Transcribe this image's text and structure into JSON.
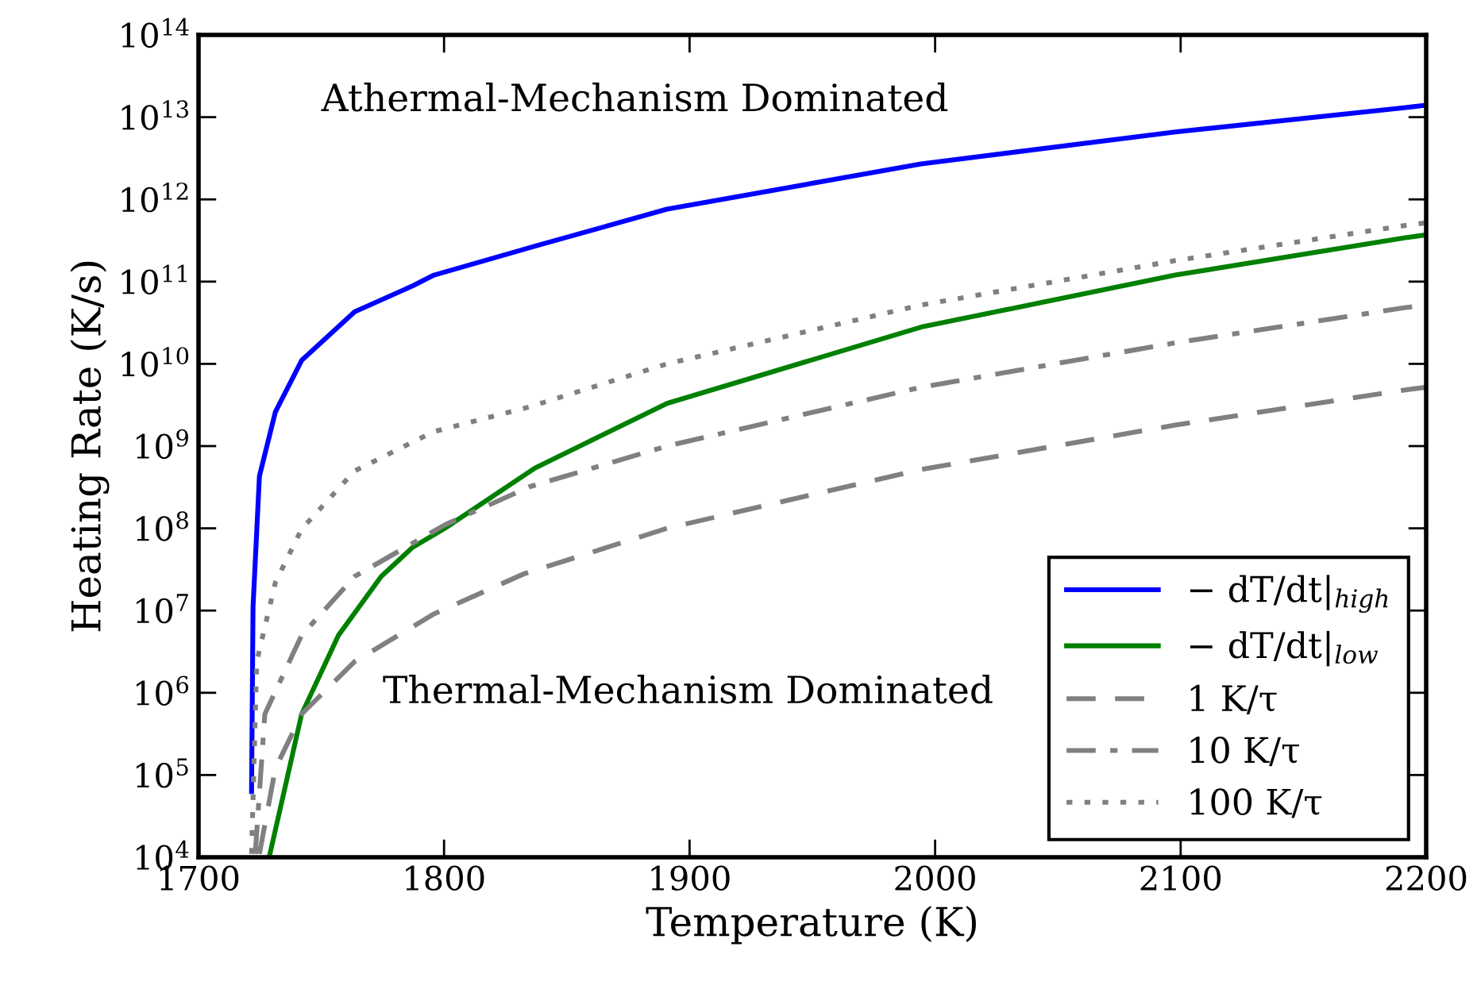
{
  "chart_data": {
    "type": "line",
    "xlabel": "Temperature (K)",
    "ylabel": "Heating Rate (K/s)",
    "log": "y",
    "xlim": [
      1700,
      2200
    ],
    "ylim": [
      10000,
      100000000000000.0
    ],
    "xticks": [
      1700,
      1800,
      1900,
      2000,
      2100,
      2200
    ],
    "yticks": [
      {
        "value": 10000.0,
        "label": "10$^{4}$"
      },
      {
        "value": 100000.0,
        "label": "10$^{5}$"
      },
      {
        "value": 1000000.0,
        "label": "10$^{6}$"
      },
      {
        "value": 10000000.0,
        "label": "10$^{7}$"
      },
      {
        "value": 100000000.0,
        "label": "10$^{8}$"
      },
      {
        "value": 1000000000.0,
        "label": "10$^{9}$"
      },
      {
        "value": 10000000000.0,
        "label": "10$^{10}$"
      },
      {
        "value": 100000000000.0,
        "label": "10$^{11}$"
      },
      {
        "value": 1000000000000.0,
        "label": "10$^{12}$"
      },
      {
        "value": 10000000000000.0,
        "label": "10$^{13}$"
      },
      {
        "value": 100000000000000.0,
        "label": "10$^{14}$"
      }
    ],
    "grid": false,
    "legend": "bottom right",
    "series": [
      {
        "name": "− dT/dt|$_{high}$",
        "color": "#0000ff",
        "line_style": "solid",
        "x": [
          1721.6,
          1722.2,
          1724.8,
          1731.3,
          1742,
          1763.6,
          1787.3,
          1795.9,
          1837,
          1890.8,
          1994.3,
          2097.8,
          2191,
          2200
        ],
        "values": [
          63000.0,
          11000000.0,
          430000000.0,
          2600000000.0,
          11000000000.0,
          43000000000.0,
          89000000000.0,
          120000000000.0,
          270000000000.0,
          760000000000.0,
          2700000000000.0,
          6600000000000.0,
          13000000000000.0,
          14000000000000.0
        ]
      },
      {
        "name": "− dT/dt|$_{low}$",
        "color": "#008000",
        "line_style": "solid",
        "x": [
          1729.1,
          1742,
          1757,
          1774.4,
          1787.3,
          1800.3,
          1837,
          1890.8,
          1994.3,
          2097.8,
          2191,
          2200
        ],
        "values": [
          11000.0,
          550000.0,
          5000000.0,
          26000000.0,
          59000000.0,
          100000000.0,
          540000000.0,
          3300000000.0,
          28000000000.0,
          120000000000.0,
          340000000000.0,
          370000000000.0
        ]
      },
      {
        "name": "1 K/τ",
        "color": "#808080",
        "line_style": "dashed",
        "x": [
          1724.8,
          1731.3,
          1742,
          1763.6,
          1795.9,
          1832.6,
          1890.8,
          1994.3,
          2097.8,
          2191,
          2200
        ],
        "values": [
          11000.0,
          120000.0,
          550000.0,
          2400000.0,
          9100000.0,
          28000000.0,
          100000000.0,
          520000000.0,
          1800000000.0,
          4800000000.0,
          5200000000.0
        ]
      },
      {
        "name": "10 K/τ",
        "color": "#808080",
        "line_style": "dashdot",
        "x": [
          1723.1,
          1727,
          1742,
          1763.6,
          1800.3,
          1834.8,
          1890.8,
          1994.3,
          2097.8,
          2191,
          2200
        ],
        "values": [
          11000.0,
          550000.0,
          5000000.0,
          26000000.0,
          110000000.0,
          320000000.0,
          1000000000.0,
          5200000000.0,
          18000000000.0,
          48000000000.0,
          52000000000.0
        ]
      },
      {
        "name": "100 K/τ",
        "color": "#808080",
        "line_style": "dotted",
        "x": [
          1721.6,
          1723.7,
          1731.3,
          1742,
          1763.6,
          1795.9,
          1834.8,
          1890.8,
          1994.3,
          2097.8,
          2191,
          2200
        ],
        "values": [
          11000.0,
          2400000.0,
          22000000.0,
          98000000.0,
          500000000.0,
          1500000000.0,
          3000000000.0,
          10000000000.0,
          52000000000.0,
          180000000000.0,
          480000000000.0,
          520000000000.0
        ]
      }
    ],
    "annotations": [
      "Athermal-Mechanism Dominated",
      "Thermal-Mechanism Dominated"
    ]
  }
}
